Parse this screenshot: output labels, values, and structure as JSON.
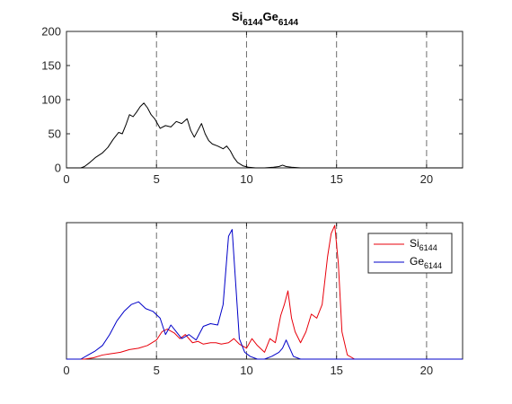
{
  "chart_data": [
    {
      "type": "line",
      "title_main1": "Si",
      "title_sub1": "6144",
      "title_main2": "Ge",
      "title_sub2": "6144",
      "xlim": [
        0,
        22
      ],
      "ylim": [
        0,
        200
      ],
      "xticks": [
        "0",
        "5",
        "10",
        "15",
        "20"
      ],
      "yticks": [
        "0",
        "50",
        "100",
        "150",
        "200"
      ],
      "grid": "vertical dashed lines at x = 5, 10, 15, 20",
      "series": [
        {
          "color": "#000000",
          "x": [
            0,
            0.8,
            1.0,
            1.3,
            1.6,
            2.0,
            2.3,
            2.6,
            2.9,
            3.1,
            3.3,
            3.5,
            3.7,
            3.9,
            4.1,
            4.3,
            4.5,
            4.7,
            4.9,
            5.2,
            5.5,
            5.8,
            6.1,
            6.4,
            6.7,
            6.9,
            7.1,
            7.3,
            7.5,
            7.7,
            7.9,
            8.1,
            8.4,
            8.7,
            8.9,
            9.1,
            9.3,
            9.5,
            9.8,
            10.1,
            10.5,
            11.0,
            11.5,
            11.8,
            12.0,
            12.2,
            12.5,
            13.0,
            14.0,
            16.0,
            18.0,
            20.0,
            22.0
          ],
          "y": [
            0,
            0,
            2,
            8,
            15,
            22,
            30,
            42,
            52,
            50,
            63,
            78,
            75,
            82,
            90,
            95,
            88,
            78,
            72,
            58,
            62,
            60,
            68,
            65,
            72,
            55,
            45,
            55,
            65,
            50,
            40,
            35,
            32,
            28,
            32,
            25,
            15,
            8,
            3,
            1,
            0,
            0,
            1,
            2,
            4,
            2,
            1,
            0,
            0,
            0,
            0,
            0,
            0
          ]
        }
      ]
    },
    {
      "type": "line",
      "xlim": [
        0,
        22
      ],
      "ylim": [
        0,
        100
      ],
      "xticks": [
        "0",
        "5",
        "10",
        "15",
        "20"
      ],
      "yticks_shown": false,
      "grid": "vertical dashed lines at x = 5, 10, 15, 20",
      "legend_position": "top-right",
      "series": [
        {
          "name_main": "Si",
          "name_sub": "6144",
          "color": "#e8000b",
          "x": [
            0,
            1.0,
            1.5,
            2.0,
            2.5,
            3.0,
            3.5,
            4.0,
            4.5,
            5.0,
            5.3,
            5.6,
            6.0,
            6.3,
            6.6,
            7.0,
            7.3,
            7.6,
            8.0,
            8.3,
            8.6,
            9.0,
            9.3,
            9.6,
            10.0,
            10.3,
            10.6,
            11.0,
            11.3,
            11.6,
            11.9,
            12.1,
            12.3,
            12.5,
            12.7,
            13.0,
            13.3,
            13.6,
            13.9,
            14.2,
            14.5,
            14.7,
            14.9,
            15.1,
            15.3,
            15.6,
            16.0,
            18.0,
            20.0,
            22.0
          ],
          "y": [
            0,
            0,
            1,
            3,
            4,
            5,
            7,
            8,
            10,
            14,
            20,
            22,
            19,
            15,
            18,
            12,
            13,
            11,
            12,
            12,
            11,
            12,
            15,
            11,
            8,
            15,
            10,
            5,
            15,
            12,
            32,
            40,
            50,
            30,
            20,
            12,
            20,
            33,
            30,
            40,
            75,
            92,
            98,
            70,
            20,
            3,
            0,
            0,
            0,
            0
          ]
        },
        {
          "name_main": "Ge",
          "name_sub": "6144",
          "color": "#0000c8",
          "x": [
            0,
            0.8,
            1.2,
            1.6,
            2.0,
            2.4,
            2.8,
            3.2,
            3.6,
            4.0,
            4.4,
            4.8,
            5.2,
            5.5,
            5.8,
            6.1,
            6.4,
            6.8,
            7.2,
            7.6,
            8.0,
            8.4,
            8.7,
            9.0,
            9.2,
            9.4,
            9.6,
            9.9,
            10.2,
            10.6,
            11.0,
            11.4,
            11.8,
            12.0,
            12.2,
            12.4,
            12.6,
            13.0,
            14.0,
            16.0,
            18.0,
            20.0,
            22.0
          ],
          "y": [
            0,
            0,
            3,
            6,
            10,
            18,
            28,
            35,
            40,
            42,
            37,
            35,
            30,
            18,
            25,
            20,
            15,
            18,
            14,
            24,
            26,
            25,
            40,
            90,
            95,
            55,
            15,
            5,
            2,
            0,
            0,
            2,
            5,
            8,
            14,
            8,
            2,
            0,
            0,
            0,
            0,
            0,
            0
          ]
        }
      ]
    }
  ]
}
